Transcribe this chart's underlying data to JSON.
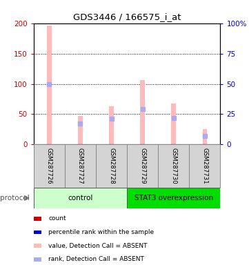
{
  "title": "GDS3446 / 166575_i_at",
  "samples": [
    "GSM287726",
    "GSM287727",
    "GSM287728",
    "GSM287729",
    "GSM287730",
    "GSM287731"
  ],
  "groups": [
    {
      "label": "control",
      "samples_idx": [
        0,
        1,
        2
      ],
      "color_light": "#ccffcc",
      "color_dark": "#66cc66"
    },
    {
      "label": "STAT3 overexpression",
      "samples_idx": [
        3,
        4,
        5
      ],
      "color_light": "#00dd00",
      "color_dark": "#009900"
    }
  ],
  "value_absent": [
    197,
    47,
    63,
    106,
    67,
    25
  ],
  "rank_absent_pct": [
    50,
    17,
    21,
    29,
    22,
    7
  ],
  "ylim_left": [
    0,
    200
  ],
  "ylim_right": [
    0,
    100
  ],
  "yticks_left": [
    0,
    50,
    100,
    150,
    200
  ],
  "yticks_right": [
    0,
    25,
    50,
    75,
    100
  ],
  "ytick_labels_right": [
    "0",
    "25",
    "50",
    "75",
    "100%"
  ],
  "color_value_absent": "#ffbbbb",
  "color_rank_absent": "#aaaaee",
  "color_count": "#cc0000",
  "color_rank": "#0000cc",
  "legend_items": [
    {
      "color": "#cc0000",
      "label": "count"
    },
    {
      "color": "#0000cc",
      "label": "percentile rank within the sample"
    },
    {
      "color": "#ffbbbb",
      "label": "value, Detection Call = ABSENT"
    },
    {
      "color": "#aaaaee",
      "label": "rank, Detection Call = ABSENT"
    }
  ],
  "protocol_label": "protocol",
  "background_color": "#ffffff"
}
